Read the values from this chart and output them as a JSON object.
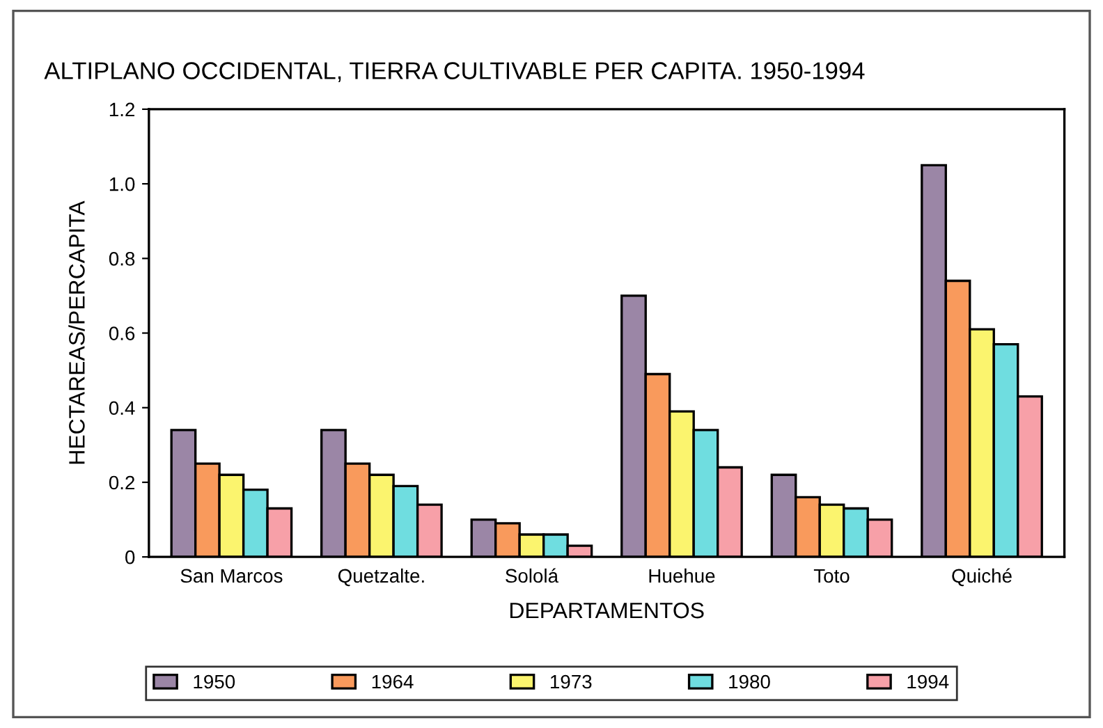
{
  "chart_data": {
    "type": "bar",
    "title": "ALTIPLANO OCCIDENTAL, TIERRA CULTIVABLE PER CAPITA. 1950-1994",
    "xlabel": "DEPARTAMENTOS",
    "ylabel": "HECTAREAS/PERCAPITA",
    "categories": [
      "San Marcos",
      "Quetzalte.",
      "Sololá",
      "Huehue",
      "Toto",
      "Quiché"
    ],
    "series": [
      {
        "name": "1950",
        "color": "#9b86a6",
        "values": [
          0.34,
          0.34,
          0.1,
          0.7,
          0.22,
          1.05
        ]
      },
      {
        "name": "1964",
        "color": "#f99a5c",
        "values": [
          0.25,
          0.25,
          0.09,
          0.49,
          0.16,
          0.74
        ]
      },
      {
        "name": "1973",
        "color": "#fbf46e",
        "values": [
          0.22,
          0.22,
          0.06,
          0.39,
          0.14,
          0.61
        ]
      },
      {
        "name": "1980",
        "color": "#6fdde0",
        "values": [
          0.18,
          0.19,
          0.06,
          0.34,
          0.13,
          0.57
        ]
      },
      {
        "name": "1994",
        "color": "#f7a0a8",
        "values": [
          0.13,
          0.14,
          0.03,
          0.24,
          0.1,
          0.43
        ]
      }
    ],
    "ylim": [
      0,
      1.2
    ],
    "yticks": [
      0,
      0.2,
      0.4,
      0.6,
      0.8,
      {
        "value": 1,
        "label": "1.0"
      },
      1.2
    ],
    "grid": false,
    "legend": "bottom"
  }
}
